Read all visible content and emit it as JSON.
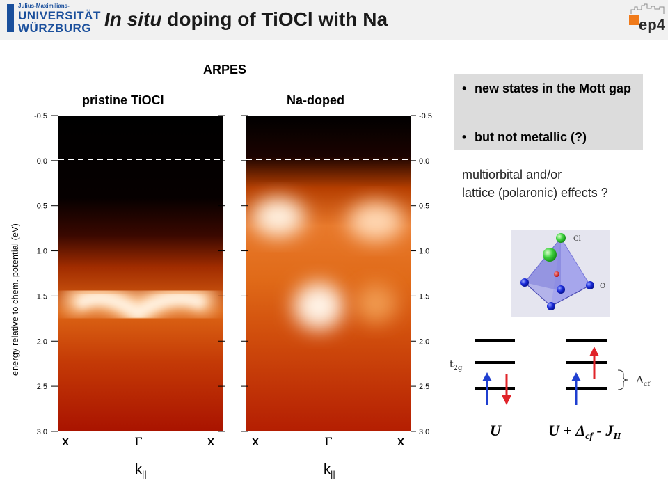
{
  "header": {
    "university_small": "Julius-Maximilians-",
    "university_line1": "UNIVERSITÄT",
    "university_line2": "WÜRZBURG",
    "title_italic": "In situ",
    "title_rest": " doping of TiOCl with Na",
    "logo_text": "ep4"
  },
  "arpes_label": "ARPES",
  "panels": [
    {
      "label": "pristine TiOCl"
    },
    {
      "label": "Na-doped"
    }
  ],
  "axis": {
    "ylabel": "energy relative to chem. potential (eV)",
    "ticks": [
      "-0.5",
      "0.0",
      "0.5",
      "1.0",
      "1.5",
      "2.0",
      "2.5",
      "3.0"
    ],
    "xticks": [
      "X",
      "Γ",
      "X"
    ],
    "xlabel_main": "k",
    "xlabel_sub": "||"
  },
  "bullets": [
    "new states in the Mott gap",
    "but not metallic (?)"
  ],
  "note_line1": "multiorbital and/or",
  "note_line2": "lattice (polaronic) effects ?",
  "molecule": {
    "cl_label": "Cl",
    "o_label": "O"
  },
  "levels": {
    "t2g_main": "t",
    "t2g_sub": "2g",
    "delta_main": "Δ",
    "delta_sub": "cf",
    "u_label": "U",
    "formula_prefix": "U + Δ",
    "formula_sub1": "cf",
    "formula_mid": " - J",
    "formula_sub2": "H"
  },
  "colors": {
    "spin_up": "#1f3fd0",
    "spin_down": "#e0242a",
    "brand_blue": "#1a4f9c",
    "ep4_orange": "#f07a1a"
  }
}
